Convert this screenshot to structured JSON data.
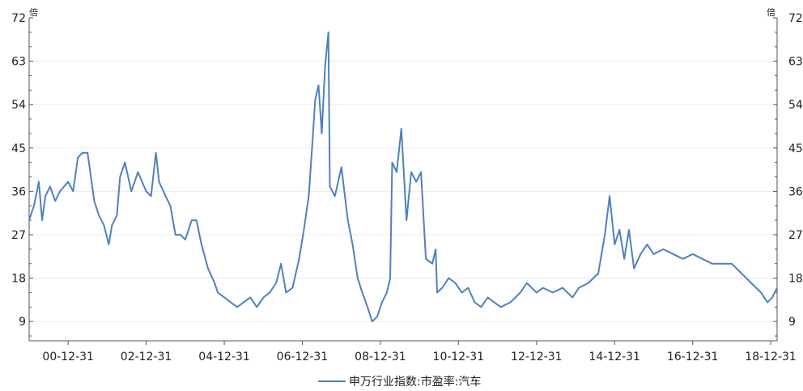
{
  "chart_data": {
    "type": "line",
    "title": "",
    "unit_left": "倍",
    "unit_right": "倍",
    "ylim": [
      5,
      72
    ],
    "yticks": [
      9,
      18,
      27,
      36,
      45,
      54,
      63,
      72
    ],
    "xlim": [
      "2000-01-01",
      "2019-03-01"
    ],
    "xticks": [
      {
        "label": "00-12-31",
        "date": "2000-12-31"
      },
      {
        "label": "02-12-31",
        "date": "2002-12-31"
      },
      {
        "label": "04-12-31",
        "date": "2004-12-31"
      },
      {
        "label": "06-12-31",
        "date": "2006-12-31"
      },
      {
        "label": "08-12-31",
        "date": "2008-12-31"
      },
      {
        "label": "10-12-31",
        "date": "2010-12-31"
      },
      {
        "label": "12-12-31",
        "date": "2012-12-31"
      },
      {
        "label": "14-12-31",
        "date": "2014-12-31"
      },
      {
        "label": "16-12-31",
        "date": "2016-12-31"
      },
      {
        "label": "18-12-31",
        "date": "2018-12-31"
      }
    ],
    "grid": true,
    "legend_position": "bottom-center",
    "series": [
      {
        "name": "申万行业指数:市盈率:汽车",
        "color": "#4f81bd",
        "points": [
          [
            "2000-01-01",
            30
          ],
          [
            "2000-02-15",
            33
          ],
          [
            "2000-04-01",
            38
          ],
          [
            "2000-05-01",
            30
          ],
          [
            "2000-06-01",
            35
          ],
          [
            "2000-07-15",
            37
          ],
          [
            "2000-09-01",
            34
          ],
          [
            "2000-10-15",
            36
          ],
          [
            "2000-12-31",
            38
          ],
          [
            "2001-02-15",
            36
          ],
          [
            "2001-04-01",
            43
          ],
          [
            "2001-05-15",
            44
          ],
          [
            "2001-07-01",
            44
          ],
          [
            "2001-08-01",
            39
          ],
          [
            "2001-09-01",
            34
          ],
          [
            "2001-10-15",
            31
          ],
          [
            "2001-12-01",
            29
          ],
          [
            "2002-01-15",
            25
          ],
          [
            "2002-02-15",
            29
          ],
          [
            "2002-04-01",
            31
          ],
          [
            "2002-05-01",
            39
          ],
          [
            "2002-06-15",
            42
          ],
          [
            "2002-08-15",
            36
          ],
          [
            "2002-10-15",
            40
          ],
          [
            "2002-12-31",
            36
          ],
          [
            "2003-02-15",
            35
          ],
          [
            "2003-04-01",
            44
          ],
          [
            "2003-05-01",
            38
          ],
          [
            "2003-07-01",
            35
          ],
          [
            "2003-08-15",
            33
          ],
          [
            "2003-10-01",
            27
          ],
          [
            "2003-11-15",
            27
          ],
          [
            "2004-01-01",
            26
          ],
          [
            "2004-03-01",
            30
          ],
          [
            "2004-04-15",
            30
          ],
          [
            "2004-06-01",
            25
          ],
          [
            "2004-08-01",
            20
          ],
          [
            "2004-10-01",
            17
          ],
          [
            "2004-11-01",
            15
          ],
          [
            "2005-01-01",
            14
          ],
          [
            "2005-03-01",
            13
          ],
          [
            "2005-05-01",
            12
          ],
          [
            "2005-07-01",
            13
          ],
          [
            "2005-09-01",
            14
          ],
          [
            "2005-11-01",
            12
          ],
          [
            "2006-01-01",
            14
          ],
          [
            "2006-03-01",
            15
          ],
          [
            "2006-05-01",
            17
          ],
          [
            "2006-06-15",
            21
          ],
          [
            "2006-08-01",
            15
          ],
          [
            "2006-10-01",
            16
          ],
          [
            "2006-12-01",
            22
          ],
          [
            "2007-01-15",
            28
          ],
          [
            "2007-03-01",
            35
          ],
          [
            "2007-04-01",
            45
          ],
          [
            "2007-05-01",
            55
          ],
          [
            "2007-06-01",
            58
          ],
          [
            "2007-07-01",
            48
          ],
          [
            "2007-08-01",
            62
          ],
          [
            "2007-09-01",
            69
          ],
          [
            "2007-09-15",
            37
          ],
          [
            "2007-11-01",
            35
          ],
          [
            "2008-01-01",
            41
          ],
          [
            "2008-03-01",
            30
          ],
          [
            "2008-04-15",
            25
          ],
          [
            "2008-06-01",
            18
          ],
          [
            "2008-07-15",
            15
          ],
          [
            "2008-09-01",
            12
          ],
          [
            "2008-10-15",
            9
          ],
          [
            "2008-12-01",
            10
          ],
          [
            "2009-01-15",
            13
          ],
          [
            "2009-03-01",
            15
          ],
          [
            "2009-04-01",
            18
          ],
          [
            "2009-04-20",
            42
          ],
          [
            "2009-06-01",
            40
          ],
          [
            "2009-07-15",
            49
          ],
          [
            "2009-09-01",
            30
          ],
          [
            "2009-10-15",
            40
          ],
          [
            "2009-12-01",
            38
          ],
          [
            "2010-01-15",
            40
          ],
          [
            "2010-03-01",
            22
          ],
          [
            "2010-05-01",
            21
          ],
          [
            "2010-06-01",
            24
          ],
          [
            "2010-06-15",
            15
          ],
          [
            "2010-08-01",
            16
          ],
          [
            "2010-10-01",
            18
          ],
          [
            "2010-12-01",
            17
          ],
          [
            "2011-02-01",
            15
          ],
          [
            "2011-04-01",
            16
          ],
          [
            "2011-06-01",
            13
          ],
          [
            "2011-08-01",
            12
          ],
          [
            "2011-10-01",
            14
          ],
          [
            "2011-12-01",
            13
          ],
          [
            "2012-02-01",
            12
          ],
          [
            "2012-05-01",
            13
          ],
          [
            "2012-08-01",
            15
          ],
          [
            "2012-10-01",
            17
          ],
          [
            "2012-12-31",
            15
          ],
          [
            "2013-03-01",
            16
          ],
          [
            "2013-06-01",
            15
          ],
          [
            "2013-09-01",
            16
          ],
          [
            "2013-12-01",
            14
          ],
          [
            "2014-02-01",
            16
          ],
          [
            "2014-05-01",
            17
          ],
          [
            "2014-08-01",
            19
          ],
          [
            "2014-10-01",
            27
          ],
          [
            "2014-11-15",
            35
          ],
          [
            "2015-01-01",
            25
          ],
          [
            "2015-02-15",
            28
          ],
          [
            "2015-04-01",
            22
          ],
          [
            "2015-05-15",
            28
          ],
          [
            "2015-07-01",
            20
          ],
          [
            "2015-09-01",
            23
          ],
          [
            "2015-11-01",
            25
          ],
          [
            "2016-01-01",
            23
          ],
          [
            "2016-04-01",
            24
          ],
          [
            "2016-07-01",
            23
          ],
          [
            "2016-10-01",
            22
          ],
          [
            "2017-01-01",
            23
          ],
          [
            "2017-04-01",
            22
          ],
          [
            "2017-07-01",
            21
          ],
          [
            "2017-10-01",
            21
          ],
          [
            "2018-01-01",
            21
          ],
          [
            "2018-04-01",
            19
          ],
          [
            "2018-07-01",
            17
          ],
          [
            "2018-10-01",
            15
          ],
          [
            "2018-12-01",
            13
          ],
          [
            "2019-01-15",
            14
          ],
          [
            "2019-03-01",
            16
          ]
        ]
      }
    ]
  }
}
